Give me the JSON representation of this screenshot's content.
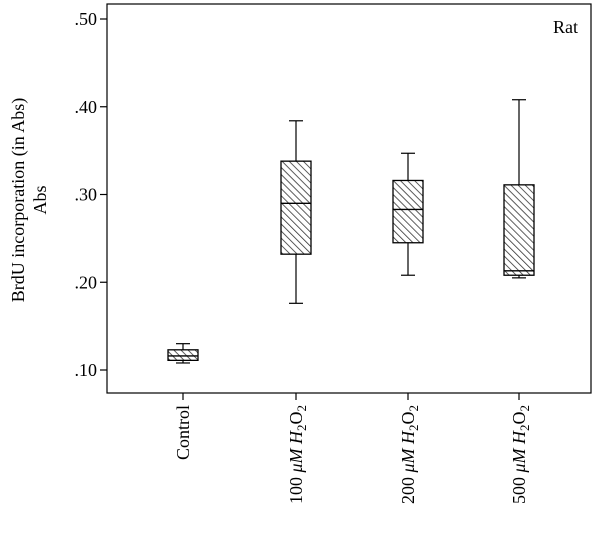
{
  "chart_data": {
    "type": "box",
    "annotation": "Rat",
    "ylabel_line1": "BrdU incorporation (in Abs)",
    "ylabel_line2": "Abs",
    "ylim": [
      0.08,
      0.52
    ],
    "yticks": [
      0.1,
      0.2,
      0.3,
      0.4,
      0.5
    ],
    "ytick_labels": [
      ".10",
      ".20",
      ".30",
      ".40",
      ".50"
    ],
    "grid": false,
    "categories": [
      {
        "label": "Control",
        "prefix": "Control",
        "sub1": "",
        "mid": "",
        "sub2": ""
      },
      {
        "label": "100 μM H2O2",
        "prefix": "100 ",
        "mu": "μ",
        "unit": "M H",
        "sub1": "2",
        "mid": "O",
        "sub2": "2"
      },
      {
        "label": "200 μM H2O2",
        "prefix": "200 ",
        "mu": "μ",
        "unit": "M H",
        "sub1": "2",
        "mid": "O",
        "sub2": "2"
      },
      {
        "label": "500 μM H2O2",
        "prefix": "500 ",
        "mu": "μ",
        "unit": "M H",
        "sub1": "2",
        "mid": "O",
        "sub2": "2"
      }
    ],
    "boxes": [
      {
        "whisker_low": 0.108,
        "q1": 0.111,
        "median": 0.116,
        "q3": 0.123,
        "whisker_high": 0.13
      },
      {
        "whisker_low": 0.176,
        "q1": 0.232,
        "median": 0.29,
        "q3": 0.338,
        "whisker_high": 0.384
      },
      {
        "whisker_low": 0.208,
        "q1": 0.245,
        "median": 0.283,
        "q3": 0.316,
        "whisker_high": 0.347
      },
      {
        "whisker_low": 0.205,
        "q1": 0.208,
        "median": 0.213,
        "q3": 0.311,
        "whisker_high": 0.408
      }
    ],
    "colors": {
      "line": "#000000",
      "hatch": "#333333",
      "background": "#ffffff"
    }
  }
}
